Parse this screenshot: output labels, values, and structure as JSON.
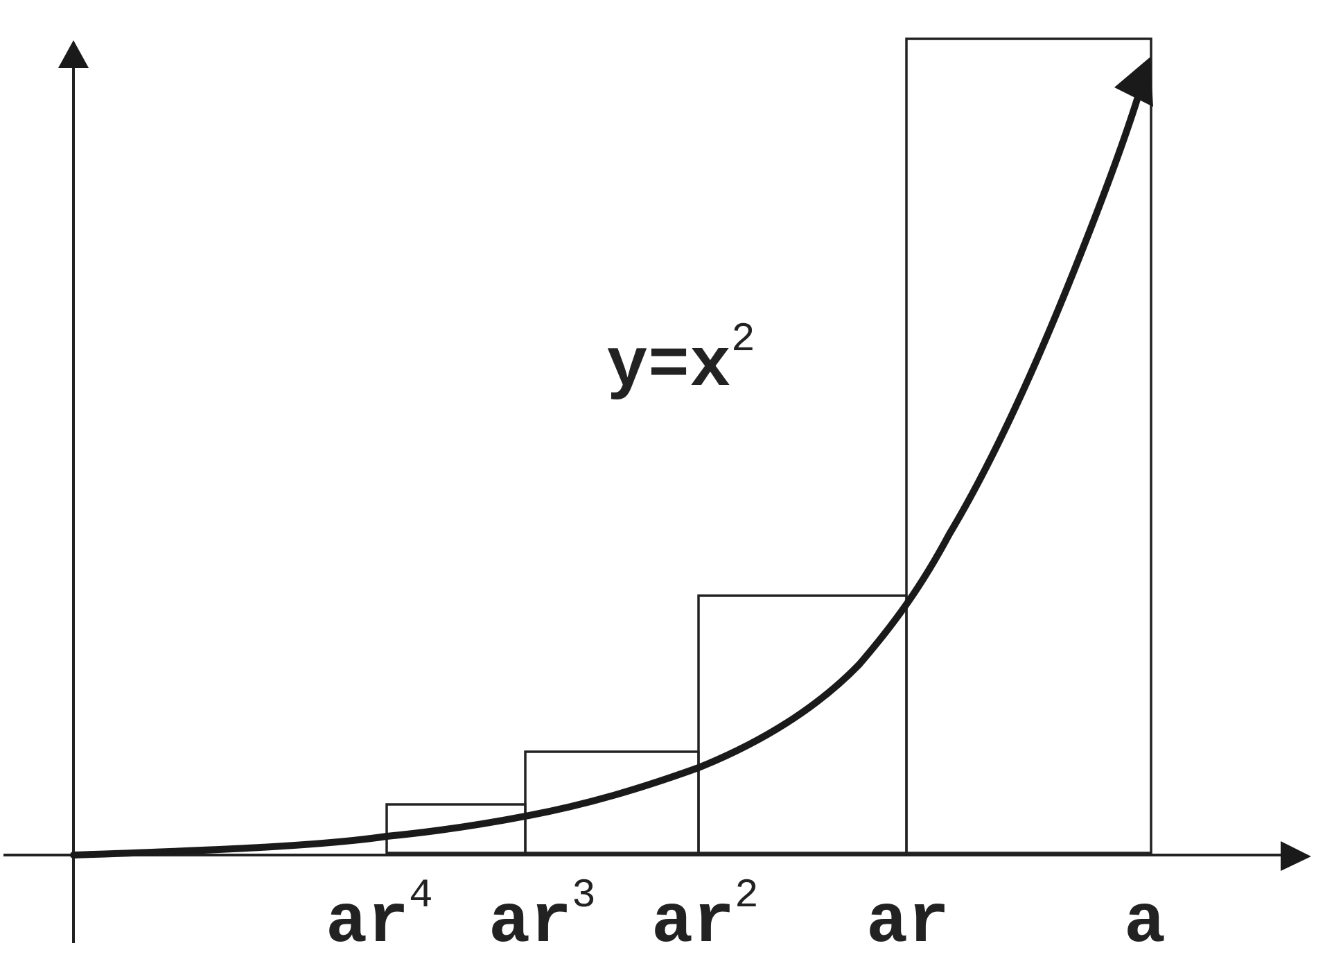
{
  "diagram": {
    "curve_label": {
      "base": "y=x",
      "exponent": "2"
    },
    "x_labels": [
      {
        "base": "ar",
        "exponent": "4"
      },
      {
        "base": "ar",
        "exponent": "3"
      },
      {
        "base": "ar",
        "exponent": "2"
      },
      {
        "base": "ar",
        "exponent": ""
      },
      {
        "base": "a",
        "exponent": ""
      }
    ],
    "colors": {
      "ink": "#222222",
      "curve": "#1a1a1a",
      "background": "#ffffff"
    }
  }
}
